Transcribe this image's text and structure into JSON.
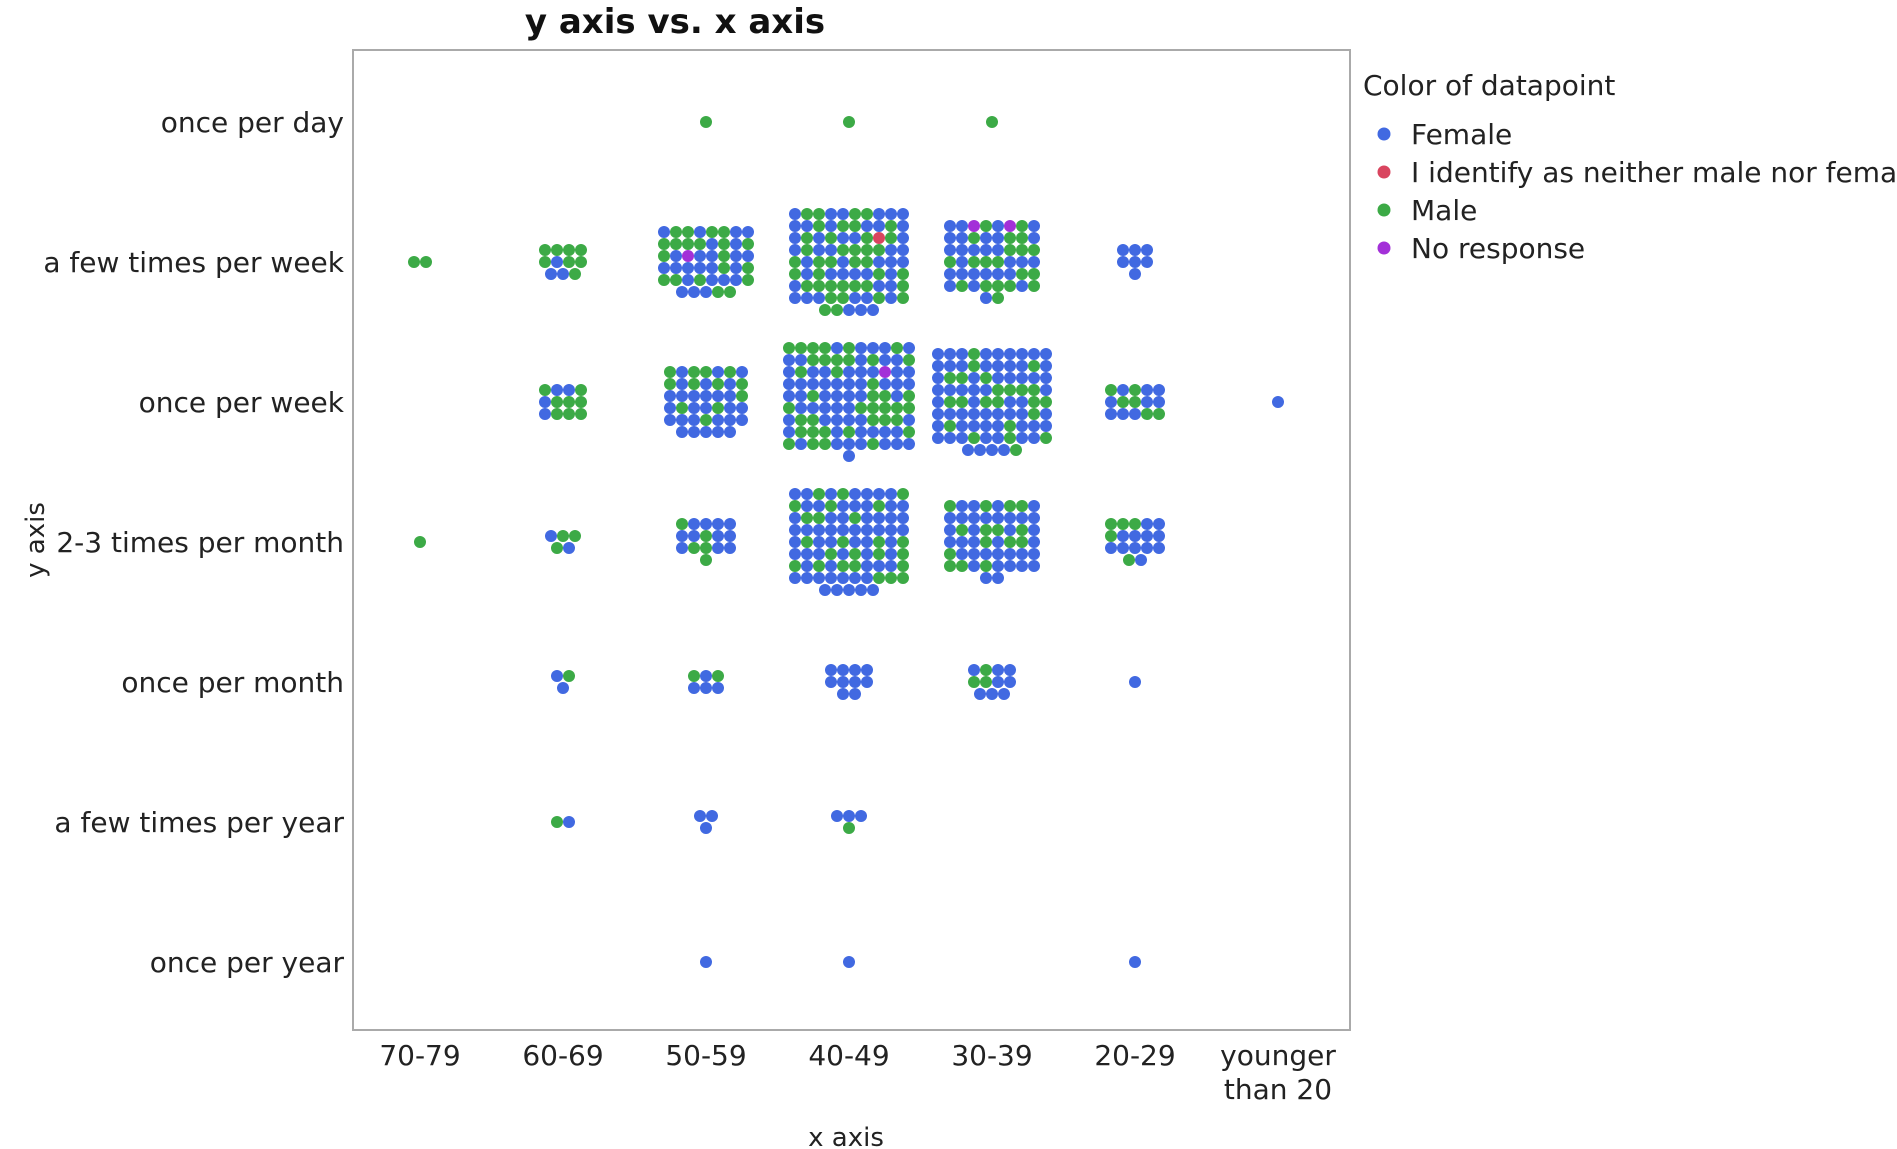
{
  "chart_data": {
    "type": "scatter",
    "title": "y axis vs. x axis",
    "xlabel": "x axis",
    "ylabel": "y axis",
    "x_categories": [
      "70-79",
      "60-69",
      "50-59",
      "40-49",
      "30-39",
      "20-29",
      "younger than 20"
    ],
    "y_categories": [
      "once per day",
      "a few times per week",
      "once per week",
      "2-3 times per month",
      "once per month",
      "a few times per year",
      "once per year"
    ],
    "grid": false,
    "legend": {
      "title": "Color of datapoint",
      "placement": "right",
      "entries": [
        {
          "name": "Female",
          "color": "#4169E1"
        },
        {
          "name": "I identify as neither male nor female",
          "color": "#D9455F"
        },
        {
          "name": "Male",
          "color": "#3CAA46"
        },
        {
          "name": "No response",
          "color": "#A330D8"
        }
      ]
    },
    "cells": [
      {
        "x": "50-59",
        "y": "once per day",
        "counts": [
          0,
          0,
          1,
          0
        ]
      },
      {
        "x": "40-49",
        "y": "once per day",
        "counts": [
          0,
          0,
          1,
          0
        ]
      },
      {
        "x": "30-39",
        "y": "once per day",
        "counts": [
          0,
          0,
          1,
          0
        ]
      },
      {
        "x": "70-79",
        "y": "a few times per week",
        "counts": [
          0,
          0,
          2,
          0
        ]
      },
      {
        "x": "60-69",
        "y": "a few times per week",
        "counts": [
          3,
          0,
          8,
          0
        ]
      },
      {
        "x": "50-59",
        "y": "a few times per week",
        "counts": [
          24,
          0,
          20,
          1
        ]
      },
      {
        "x": "40-49",
        "y": "a few times per week",
        "counts": [
          45,
          1,
          39,
          0
        ]
      },
      {
        "x": "30-39",
        "y": "a few times per week",
        "counts": [
          28,
          0,
          20,
          2
        ]
      },
      {
        "x": "20-29",
        "y": "a few times per week",
        "counts": [
          7,
          0,
          0,
          0
        ]
      },
      {
        "x": "60-69",
        "y": "once per week",
        "counts": [
          4,
          0,
          8,
          0
        ]
      },
      {
        "x": "50-59",
        "y": "once per week",
        "counts": [
          28,
          0,
          12,
          0
        ]
      },
      {
        "x": "40-49",
        "y": "once per week",
        "counts": [
          60,
          0,
          39,
          1
        ]
      },
      {
        "x": "30-39",
        "y": "once per week",
        "counts": [
          62,
          0,
          23,
          0
        ]
      },
      {
        "x": "20-29",
        "y": "once per week",
        "counts": [
          9,
          0,
          6,
          0
        ]
      },
      {
        "x": "younger than 20",
        "y": "once per week",
        "counts": [
          1,
          0,
          0,
          0
        ]
      },
      {
        "x": "70-79",
        "y": "2-3 times per month",
        "counts": [
          0,
          0,
          1,
          0
        ]
      },
      {
        "x": "60-69",
        "y": "2-3 times per month",
        "counts": [
          2,
          0,
          3,
          0
        ]
      },
      {
        "x": "50-59",
        "y": "2-3 times per month",
        "counts": [
          11,
          0,
          5,
          0
        ]
      },
      {
        "x": "40-49",
        "y": "2-3 times per month",
        "counts": [
          60,
          0,
          25,
          0
        ]
      },
      {
        "x": "30-39",
        "y": "2-3 times per month",
        "counts": [
          35,
          0,
          15,
          0
        ]
      },
      {
        "x": "20-29",
        "y": "2-3 times per month",
        "counts": [
          12,
          0,
          5,
          0
        ]
      },
      {
        "x": "60-69",
        "y": "once per month",
        "counts": [
          2,
          0,
          1,
          0
        ]
      },
      {
        "x": "50-59",
        "y": "once per month",
        "counts": [
          4,
          0,
          2,
          0
        ]
      },
      {
        "x": "40-49",
        "y": "once per month",
        "counts": [
          10,
          0,
          0,
          0
        ]
      },
      {
        "x": "30-39",
        "y": "once per month",
        "counts": [
          8,
          0,
          3,
          0
        ]
      },
      {
        "x": "20-29",
        "y": "once per month",
        "counts": [
          1,
          0,
          0,
          0
        ]
      },
      {
        "x": "60-69",
        "y": "a few times per year",
        "counts": [
          1,
          0,
          1,
          0
        ]
      },
      {
        "x": "50-59",
        "y": "a few times per year",
        "counts": [
          3,
          0,
          0,
          0
        ]
      },
      {
        "x": "40-49",
        "y": "a few times per year",
        "counts": [
          3,
          0,
          1,
          0
        ]
      },
      {
        "x": "50-59",
        "y": "once per year",
        "counts": [
          1,
          0,
          0,
          0
        ]
      },
      {
        "x": "40-49",
        "y": "once per year",
        "counts": [
          1,
          0,
          0,
          0
        ]
      },
      {
        "x": "20-29",
        "y": "once per year",
        "counts": [
          1,
          0,
          0,
          0
        ]
      }
    ]
  }
}
